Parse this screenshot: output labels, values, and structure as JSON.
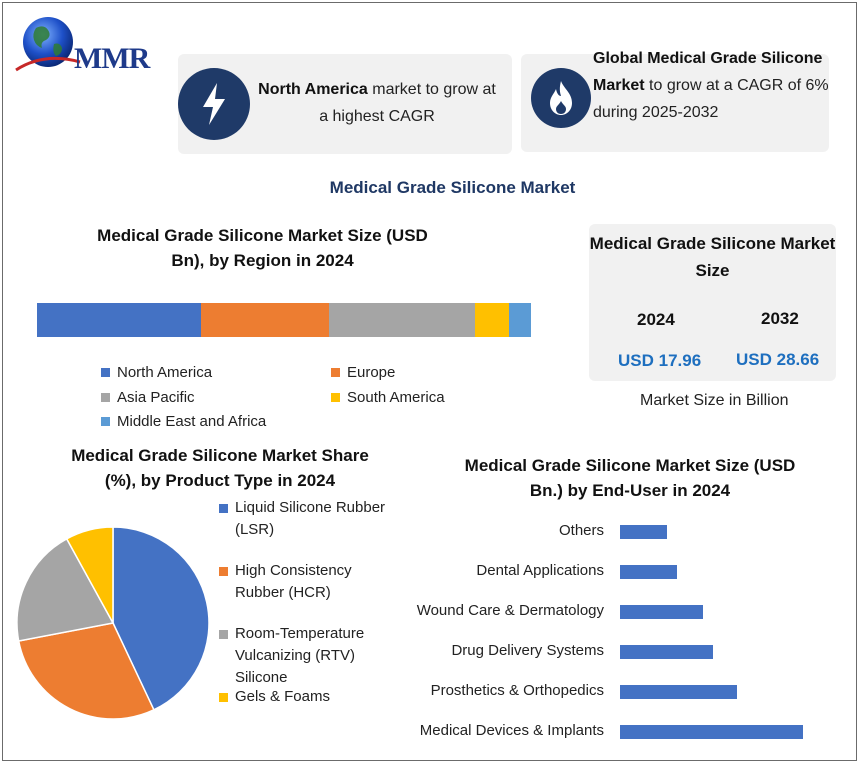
{
  "brand": {
    "logo_text": "MMR"
  },
  "highlights": [
    {
      "bold": "North America",
      "text": " market to grow at a highest CAGR",
      "icon": "lightning-icon"
    },
    {
      "bold": "Global Medical Grade Silicone Market",
      "text": " to grow at a CAGR of 6% during 2025-2032",
      "icon": "flame-icon"
    }
  ],
  "main_title": "Medical Grade Silicone Market",
  "colors": {
    "navy": "#1f3a68",
    "blue": "#4472c4",
    "orange": "#ed7d31",
    "gray": "#a5a5a5",
    "yellow": "#ffc000",
    "light_blue": "#5b9bd5",
    "usd_blue": "#1e6fbf"
  },
  "market_size": {
    "title": "Medical Grade Silicone Market Size",
    "years": [
      "2024",
      "2032"
    ],
    "values": [
      "USD 17.96",
      "USD 28.66"
    ],
    "caption": "Market Size in Billion"
  },
  "chart_data": [
    {
      "type": "bar",
      "orientation": "stacked-horizontal",
      "title": "Medical Grade Silicone Market Size (USD Bn), by Region in 2024",
      "categories": [
        "North America",
        "Europe",
        "Asia Pacific",
        "South America",
        "Middle East and Africa"
      ],
      "values": [
        33.2,
        25.9,
        29.6,
        6.9,
        4.4
      ],
      "colors": [
        "#4472c4",
        "#ed7d31",
        "#a5a5a5",
        "#ffc000",
        "#5b9bd5"
      ],
      "legend": "bottom"
    },
    {
      "type": "pie",
      "title": "Medical Grade Silicone Market Share (%), by Product Type in 2024",
      "labels": [
        "Liquid Silicone Rubber (LSR)",
        "High Consistency Rubber (HCR)",
        "Room-Temperature Vulcanizing (RTV) Silicone",
        "Gels & Foams"
      ],
      "values": [
        43,
        29,
        20,
        8
      ],
      "colors": [
        "#4472c4",
        "#ed7d31",
        "#a5a5a5",
        "#ffc000"
      ],
      "legend": "right"
    },
    {
      "type": "bar",
      "orientation": "horizontal",
      "title": "Medical Grade Silicone Market Size (USD Bn.) by  End-User in 2024",
      "categories": [
        "Others",
        "Dental Applications",
        "Wound Care & Dermatology",
        "Drug Delivery Systems",
        "Prosthetics & Orthopedics",
        "Medical Devices & Implants"
      ],
      "values": [
        1.4,
        1.7,
        2.5,
        2.8,
        3.5,
        5.5
      ],
      "xlim": [
        0,
        6
      ],
      "color": "#4472c4",
      "grid": false
    }
  ]
}
